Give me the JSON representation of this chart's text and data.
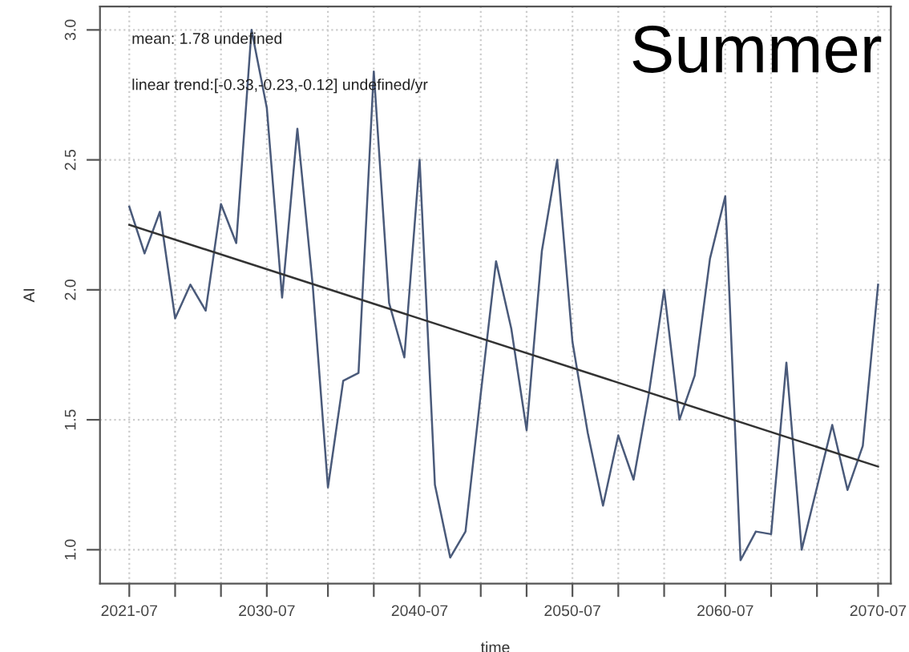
{
  "chart_data": {
    "type": "line",
    "xlabel": "time",
    "ylabel": "AI",
    "annotations": [
      "mean: 1.78 undefined",
      "linear trend:[-0.33,-0.23,-0.12] undefined/yr",
      "Summer"
    ],
    "x": [
      "2021-07",
      "2022-07",
      "2023-07",
      "2024-07",
      "2025-07",
      "2026-07",
      "2027-07",
      "2028-07",
      "2029-07",
      "2030-07",
      "2031-07",
      "2032-07",
      "2033-07",
      "2034-07",
      "2035-07",
      "2036-07",
      "2037-07",
      "2038-07",
      "2039-07",
      "2040-07",
      "2041-07",
      "2042-07",
      "2043-07",
      "2044-07",
      "2045-07",
      "2046-07",
      "2047-07",
      "2048-07",
      "2049-07",
      "2050-07",
      "2051-07",
      "2052-07",
      "2053-07",
      "2054-07",
      "2055-07",
      "2056-07",
      "2057-07",
      "2058-07",
      "2059-07",
      "2060-07",
      "2061-07",
      "2062-07",
      "2063-07",
      "2064-07",
      "2065-07",
      "2066-07",
      "2067-07",
      "2068-07",
      "2069-07",
      "2070-07"
    ],
    "series": [
      {
        "color": "#4a5a7a",
        "values": [
          2.32,
          2.14,
          2.3,
          1.89,
          2.02,
          1.92,
          2.33,
          2.18,
          3.0,
          2.7,
          1.97,
          2.62,
          2.02,
          1.24,
          1.65,
          1.68,
          2.84,
          1.95,
          1.74,
          2.5,
          1.25,
          0.97,
          1.07,
          1.6,
          2.11,
          1.85,
          1.46,
          2.15,
          2.5,
          1.8,
          1.45,
          1.17,
          1.44,
          1.27,
          1.6,
          2.0,
          1.5,
          1.67,
          2.12,
          2.36,
          0.96,
          1.07,
          1.06,
          1.72,
          1.0,
          1.24,
          1.48,
          1.23,
          1.4,
          2.02
        ]
      },
      {
        "color": "#333333",
        "x": [
          "2021-07",
          "2070-07"
        ],
        "values": [
          2.25,
          1.32
        ]
      }
    ],
    "xlim": [
      "2019-08",
      "2071-05"
    ],
    "ylim": [
      0.87,
      3.09
    ],
    "xticks": [
      {
        "value": "2021-07",
        "label": "2021-07"
      },
      {
        "value": "2024-07",
        "label": null
      },
      {
        "value": "2027-07",
        "label": null
      },
      {
        "value": "2030-07",
        "label": "2030-07"
      },
      {
        "value": "2034-07",
        "label": null
      },
      {
        "value": "2037-07",
        "label": null
      },
      {
        "value": "2040-07",
        "label": "2040-07"
      },
      {
        "value": "2044-07",
        "label": null
      },
      {
        "value": "2047-07",
        "label": null
      },
      {
        "value": "2050-07",
        "label": "2050-07"
      },
      {
        "value": "2053-07",
        "label": null
      },
      {
        "value": "2056-07",
        "label": null
      },
      {
        "value": "2060-07",
        "label": "2060-07"
      },
      {
        "value": "2063-07",
        "label": null
      },
      {
        "value": "2066-07",
        "label": null
      },
      {
        "value": "2070-07",
        "label": "2070-07"
      }
    ],
    "yticks": [
      {
        "value": 1.0,
        "label": "1.0"
      },
      {
        "value": 1.5,
        "label": "1.5"
      },
      {
        "value": 2.0,
        "label": "2.0"
      },
      {
        "value": 2.5,
        "label": "2.5"
      },
      {
        "value": 3.0,
        "label": "3.0"
      }
    ],
    "grid": true,
    "marker": "none",
    "line_style": "solid"
  }
}
